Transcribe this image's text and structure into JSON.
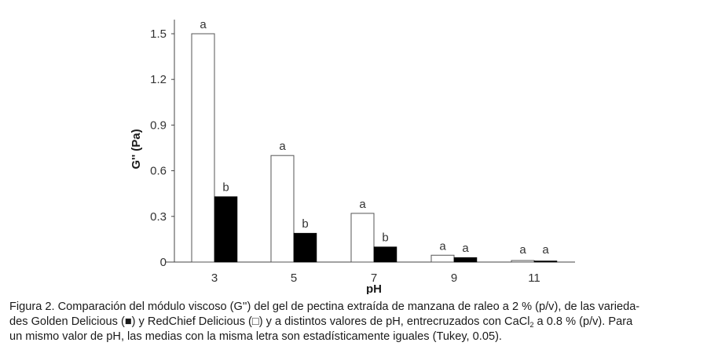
{
  "chart_data": {
    "type": "bar",
    "title": "",
    "xlabel": "pH",
    "ylabel": "G'' (Pa)",
    "ylim": [
      0,
      1.6
    ],
    "yticks": [
      0,
      0.3,
      0.6,
      0.9,
      1.2,
      1.5
    ],
    "ytick_labels": [
      "0",
      "0.3",
      "0.6",
      "0.9",
      "1.2",
      "1.5"
    ],
    "categories": [
      "3",
      "5",
      "7",
      "9",
      "11"
    ],
    "grid": false,
    "legend": "none (described in caption: ■ Golden Delicious, □ RedChief Delicious)",
    "series": [
      {
        "name": "RedChief Delicious (□)",
        "fill": "#ffffff",
        "values": [
          1.5,
          0.7,
          0.32,
          0.045,
          0.01
        ],
        "letters": [
          "a",
          "a",
          "a",
          "a",
          "a"
        ]
      },
      {
        "name": "Golden Delicious (■)",
        "fill": "#000000",
        "values": [
          0.43,
          0.19,
          0.1,
          0.03,
          0.005
        ],
        "letters": [
          "b",
          "b",
          "b",
          "a",
          "a"
        ]
      }
    ]
  },
  "caption": {
    "line1": "Figura 2. Comparación del módulo viscoso (G'') del gel de pectina extraída de manzana de raleo a 2 % (p/v), de las varieda-",
    "line2_a": "des Golden Delicious (■) y RedChief Delicious (□) y a distintos valores de pH, entrecruzados con CaCl",
    "line2_sub": "2",
    "line2_b": " a 0.8 % (p/v). Para",
    "line3": "un mismo valor de pH, las medias con la misma letra son estadísticamente iguales (Tukey, 0.05)."
  }
}
